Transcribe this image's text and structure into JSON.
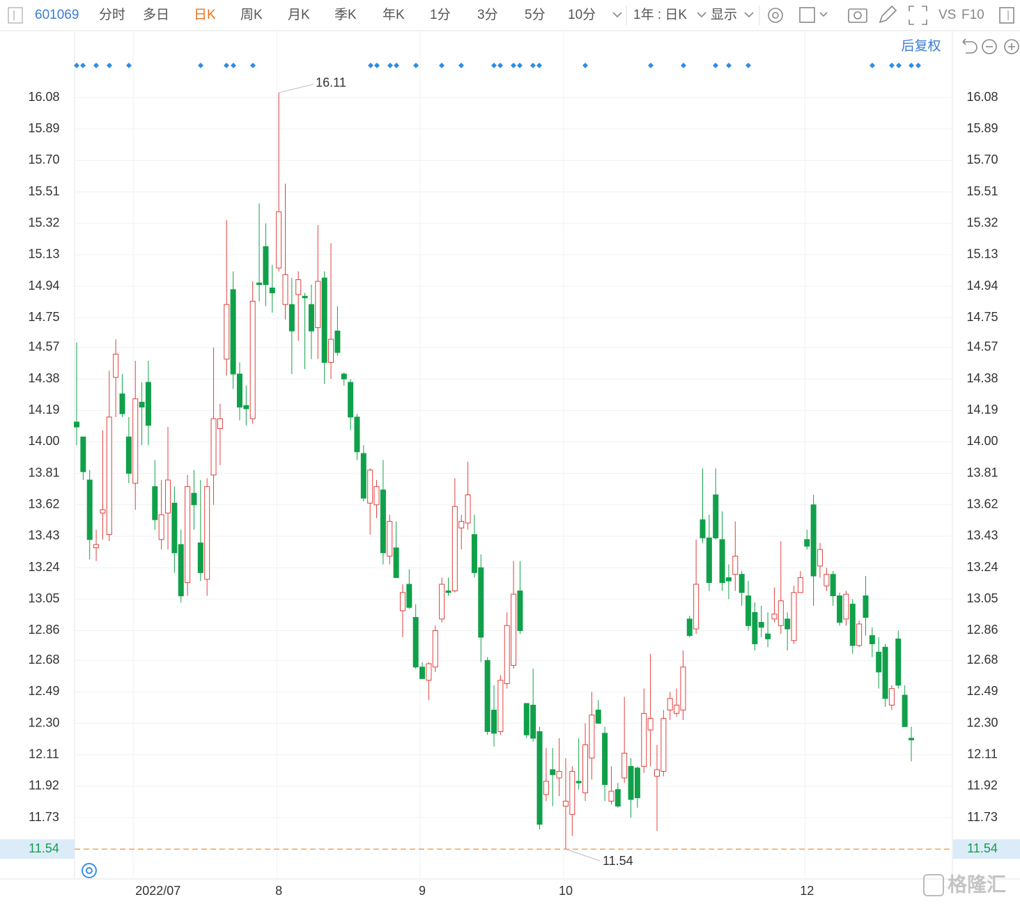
{
  "toolbar": {
    "code": "601069",
    "periods": [
      "分时",
      "多日",
      "日K",
      "周K",
      "月K",
      "季K",
      "年K",
      "1分",
      "3分",
      "5分",
      "10分"
    ],
    "active": "日K",
    "range": "1年 : 日K",
    "display": "显示",
    "vs": "VS",
    "f10": "F10"
  },
  "adjust": "后复权",
  "watermark": "格隆汇",
  "chart_data": {
    "type": "candlestick",
    "categories": [
      null,
      null,
      null,
      null,
      null,
      null,
      null,
      null,
      null,
      "2022/07",
      null,
      null,
      null,
      null,
      null,
      null,
      null,
      null,
      null,
      null,
      null,
      null,
      null,
      null,
      null,
      null,
      null,
      null,
      null,
      null,
      null,
      "8",
      null,
      null,
      null,
      null,
      null,
      null,
      null,
      null,
      null,
      null,
      null,
      null,
      null,
      null,
      null,
      null,
      null,
      null,
      null,
      null,
      null,
      "9",
      null,
      null,
      null,
      null,
      null,
      null,
      null,
      null,
      null,
      null,
      null,
      null,
      null,
      null,
      null,
      null,
      null,
      null,
      null,
      null,
      null,
      "10",
      null,
      null,
      null,
      null,
      null,
      null,
      null,
      null,
      null,
      null,
      null,
      null,
      null,
      null,
      null,
      null,
      null,
      null,
      null,
      null,
      null,
      null,
      null,
      null,
      null,
      null,
      null,
      null,
      null,
      null,
      null,
      null,
      null,
      null,
      null,
      null,
      "12",
      null,
      null,
      null,
      null,
      null,
      null,
      null,
      null,
      null,
      null,
      null,
      null,
      null,
      null,
      null,
      null
    ],
    "open": [
      14.12,
      14.03,
      13.77,
      13.36,
      13.57,
      13.44,
      14.39,
      14.29,
      14.03,
      13.75,
      14.24,
      14.36,
      13.73,
      13.41,
      13.57,
      13.63,
      13.38,
      13.15,
      13.69,
      13.39,
      13.17,
      13.8,
      14.08,
      14.5,
      14.92,
      14.41,
      14.22,
      14.14,
      14.96,
      15.18,
      14.93,
      15.05,
      14.83,
      14.83,
      14.89,
      14.88,
      14.83,
      14.69,
      14.99,
      14.48,
      14.67,
      14.41,
      14.36,
      14.15,
      13.93,
      13.63,
      13.62,
      13.71,
      13.31,
      13.36,
      12.98,
      13.14,
      12.94,
      12.64,
      12.56,
      12.64,
      12.93,
      13.1,
      13.1,
      13.48,
      13.51,
      13.44,
      13.24,
      12.68,
      12.38,
      12.25,
      12.54,
      12.65,
      13.1,
      12.42,
      12.41,
      12.25,
      11.87,
      12.02,
      11.97,
      11.8,
      11.75,
      11.95,
      11.88,
      12.09,
      12.38,
      12.24,
      11.83,
      11.9,
      11.97,
      12.04,
      12.03,
      12.04,
      12.26,
      11.98,
      12.01,
      12.38,
      12.36,
      12.38,
      12.93,
      12.87,
      13.53,
      13.42,
      13.68,
      13.41,
      13.18,
      13.2,
      13.2,
      13.07,
      12.97,
      12.91,
      12.84,
      12.93,
      12.89,
      12.93,
      12.8,
      13.09,
      13.41,
      13.62,
      13.25,
      13.13,
      13.2,
      13.07,
      12.93,
      13.02,
      12.77,
      13.07,
      12.83,
      12.73,
      12.76,
      12.41,
      12.81,
      12.47,
      12.21
    ],
    "high": [
      14.6,
      14.03,
      13.83,
      13.47,
      14.07,
      14.43,
      14.62,
      14.41,
      14.15,
      14.49,
      14.36,
      14.49,
      13.89,
      13.77,
      14.09,
      13.73,
      13.47,
      13.8,
      13.83,
      13.77,
      13.78,
      14.57,
      14.23,
      15.34,
      15.03,
      14.48,
      14.34,
      14.97,
      15.44,
      15.32,
      15.07,
      16.11,
      15.56,
      14.99,
      15.03,
      14.9,
      14.95,
      15.31,
      15.03,
      15.2,
      14.82,
      14.42,
      14.38,
      14.17,
      13.98,
      13.84,
      13.77,
      13.89,
      13.56,
      13.52,
      13.14,
      13.23,
      13.02,
      12.67,
      12.67,
      12.89,
      13.18,
      13.18,
      13.78,
      13.56,
      13.88,
      13.56,
      13.32,
      12.7,
      12.53,
      12.59,
      12.97,
      13.28,
      13.28,
      12.42,
      12.63,
      12.28,
      12.15,
      12.15,
      12.21,
      12.09,
      12.04,
      12.21,
      12.3,
      12.49,
      12.44,
      12.28,
      12.04,
      11.94,
      12.46,
      12.09,
      12.04,
      12.51,
      12.72,
      12.17,
      12.38,
      12.49,
      12.51,
      12.74,
      12.95,
      13.41,
      13.84,
      13.56,
      13.84,
      13.58,
      13.26,
      13.52,
      13.22,
      13.16,
      13.03,
      13.01,
      12.97,
      13.12,
      13.4,
      12.97,
      13.13,
      13.22,
      13.47,
      13.68,
      13.39,
      13.24,
      13.22,
      13.09,
      13.1,
      13.05,
      12.92,
      13.19,
      12.88,
      12.82,
      12.78,
      12.53,
      12.86,
      12.53,
      12.28
    ],
    "low": [
      13.98,
      13.77,
      13.29,
      13.28,
      13.41,
      13.4,
      14.15,
      14.15,
      13.75,
      13.59,
      13.98,
      13.98,
      13.47,
      13.35,
      13.35,
      13.21,
      13.03,
      13.07,
      13.47,
      13.16,
      13.07,
      13.62,
      13.86,
      14.4,
      14.32,
      14.13,
      14.1,
      14.11,
      14.85,
      14.82,
      14.78,
      15.03,
      14.74,
      14.41,
      14.61,
      14.44,
      14.5,
      14.5,
      14.35,
      14.38,
      14.52,
      14.34,
      14.07,
      13.89,
      13.64,
      13.44,
      13.54,
      13.26,
      13.26,
      13.18,
      12.82,
      12.99,
      12.63,
      12.57,
      12.44,
      12.61,
      12.91,
      13.07,
      13.09,
      13.35,
      13.47,
      13.18,
      12.67,
      12.23,
      12.16,
      12.23,
      12.51,
      12.63,
      12.84,
      12.21,
      12.19,
      11.66,
      11.83,
      11.8,
      11.86,
      11.54,
      11.62,
      11.9,
      11.83,
      11.96,
      12.3,
      11.83,
      11.81,
      11.79,
      11.94,
      11.73,
      11.79,
      12.0,
      12.04,
      11.65,
      11.98,
      12.32,
      12.34,
      12.32,
      12.82,
      12.84,
      13.39,
      13.1,
      13.41,
      13.1,
      13.05,
      13.1,
      13.01,
      12.86,
      12.74,
      12.82,
      12.76,
      12.91,
      12.84,
      12.74,
      12.78,
      13.09,
      13.35,
      13.01,
      13.18,
      13.1,
      13.01,
      12.89,
      12.89,
      12.72,
      12.76,
      12.83,
      12.7,
      12.51,
      12.4,
      12.38,
      12.51,
      12.28,
      12.07
    ],
    "close": [
      14.09,
      13.82,
      13.41,
      13.38,
      13.59,
      14.15,
      14.53,
      14.17,
      13.81,
      14.26,
      14.21,
      14.1,
      13.53,
      13.56,
      13.77,
      13.33,
      13.07,
      13.73,
      13.62,
      13.21,
      13.73,
      14.14,
      14.14,
      14.83,
      14.41,
      14.21,
      14.2,
      14.85,
      14.95,
      14.95,
      14.9,
      15.39,
      15.01,
      14.67,
      14.98,
      14.87,
      14.67,
      14.97,
      14.48,
      14.62,
      14.54,
      14.38,
      14.15,
      13.94,
      13.66,
      13.83,
      13.73,
      13.33,
      13.52,
      13.18,
      13.09,
      13.0,
      12.64,
      12.57,
      12.66,
      12.86,
      13.14,
      13.09,
      13.61,
      13.52,
      13.68,
      13.21,
      12.82,
      12.25,
      12.24,
      12.56,
      12.89,
      13.08,
      12.86,
      12.23,
      12.21,
      11.69,
      11.95,
      11.99,
      12.01,
      11.83,
      12.01,
      11.94,
      12.17,
      12.35,
      12.3,
      11.93,
      11.89,
      11.8,
      12.12,
      11.84,
      11.85,
      12.36,
      12.33,
      12.02,
      12.33,
      12.45,
      12.41,
      12.64,
      12.83,
      13.14,
      13.42,
      13.15,
      13.42,
      13.15,
      13.16,
      13.31,
      13.09,
      12.89,
      12.78,
      12.88,
      12.81,
      12.96,
      13.04,
      12.87,
      13.09,
      13.18,
      13.37,
      13.19,
      13.35,
      13.2,
      13.07,
      12.91,
      13.08,
      12.77,
      12.9,
      12.94,
      12.78,
      12.61,
      12.45,
      12.51,
      12.53,
      12.28,
      12.2
    ],
    "up_color": "#e0403c",
    "down_color": "#11a04a",
    "ylim": [
      11.36,
      16.48
    ],
    "yticks": [
      16.08,
      15.89,
      {
        "value": 15.7,
        "label": "15.70"
      },
      15.51,
      15.32,
      15.13,
      14.94,
      14.75,
      14.57,
      14.38,
      14.19,
      {
        "value": 14,
        "label": "14.00"
      },
      13.81,
      13.62,
      13.43,
      13.24,
      13.05,
      12.86,
      12.68,
      12.49,
      {
        "value": 12.3,
        "label": "12.30"
      },
      12.11,
      11.92,
      11.73,
      11.54
    ],
    "high_note": 16.11,
    "low_note": 11.54,
    "ref_line": 11.54,
    "ref_color": "#f0a35e",
    "grid": true
  }
}
